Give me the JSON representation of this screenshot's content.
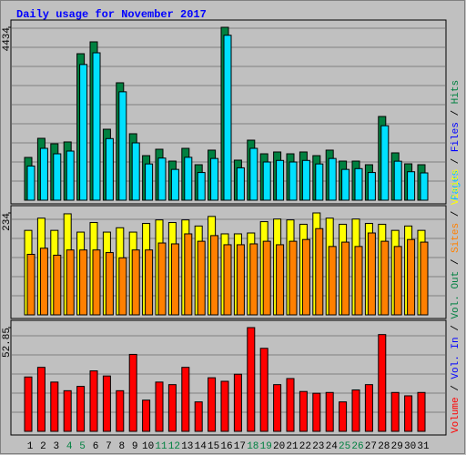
{
  "chart_data": {
    "type": "bar",
    "title": "Daily usage for November 2017",
    "categories": [
      "1",
      "2",
      "3",
      "4",
      "5",
      "6",
      "7",
      "8",
      "9",
      "10",
      "11",
      "12",
      "13",
      "14",
      "15",
      "16",
      "17",
      "18",
      "19",
      "20",
      "21",
      "22",
      "23",
      "24",
      "25",
      "26",
      "27",
      "28",
      "29",
      "30",
      "31"
    ],
    "weekends": [
      "4",
      "5",
      "11",
      "12",
      "18",
      "19",
      "25",
      "26"
    ],
    "weekend_color": "#008040",
    "panels": [
      {
        "ylim": [
          0,
          4434
        ],
        "yticks": [
          4434
        ],
        "series": [
          {
            "name": "Hits",
            "color": "#008040",
            "values": [
              1097,
              1587,
              1447,
              1494,
              3757,
              4061,
              1820,
              3011,
              1704,
              1143,
              1307,
              1003,
              1330,
              910,
              1284,
              4434,
              1027,
              1540,
              1190,
              1237,
              1190,
              1237,
              1143,
              1284,
              1003,
              1003,
              910,
              2147,
              1214,
              933,
              910
            ]
          },
          {
            "name": "Files",
            "color": "#00e0ff",
            "label_color": "#0000ff",
            "values": [
              947,
              1400,
              1260,
              1330,
              3550,
              3850,
              1650,
              2850,
              1540,
              1000,
              1150,
              860,
              1170,
              780,
              1140,
              4300,
              900,
              1400,
              1050,
              1090,
              1050,
              1090,
              1000,
              1140,
              860,
              880,
              780,
              1980,
              1070,
              800,
              770
            ]
          },
          {
            "name": "Pages",
            "color": "#00c0ff",
            "values": [
              0,
              0,
              0,
              0,
              0,
              0,
              0,
              0,
              0,
              0,
              0,
              0,
              0,
              0,
              0,
              0,
              0,
              0,
              0,
              0,
              0,
              0,
              0,
              0,
              0,
              0,
              0,
              0,
              0,
              0,
              0
            ]
          }
        ]
      },
      {
        "ylim": [
          0,
          234
        ],
        "yticks": [
          234
        ],
        "series": [
          {
            "name": "Visits",
            "color": "#ffff00",
            "values": [
              194,
              222,
              194,
              232,
              190,
              212,
              190,
              200,
              190,
              210,
              218,
              212,
              218,
              204,
              226,
              186,
              186,
              188,
              214,
              220,
              218,
              208,
              234,
              222,
              208,
              220,
              210,
              208,
              194,
              204,
              194
            ]
          },
          {
            "name": "Sites",
            "color": "#ff8000",
            "values": [
              139,
              153,
              137,
              149,
              149,
              149,
              143,
              131,
              149,
              149,
              165,
              163,
              186,
              169,
              182,
              161,
              161,
              163,
              169,
              161,
              169,
              173,
              198,
              157,
              167,
              157,
              188,
              169,
              157,
              173,
              167
            ]
          }
        ]
      },
      {
        "ylim": [
          0,
          52.85
        ],
        "yticks": [
          52.85
        ],
        "series": [
          {
            "name": "Volume",
            "color": "#ff0000",
            "values": [
              27.7,
              32.6,
              25.1,
              20.7,
              22.9,
              30.8,
              28.2,
              20.7,
              39.2,
              15.9,
              25.1,
              23.8,
              32.6,
              15.0,
              27.3,
              25.5,
              29.1,
              52.85,
              42.3,
              23.8,
              26.9,
              20.3,
              19.4,
              19.8,
              15.0,
              21.1,
              23.8,
              49.3,
              19.8,
              18.1,
              19.8
            ]
          },
          {
            "name": "Vol. In",
            "color": "#0000ff",
            "values": [
              0,
              0,
              0,
              0,
              0,
              0,
              0,
              0,
              0,
              0,
              0,
              0,
              0,
              0,
              0,
              0,
              0,
              0,
              0,
              0,
              0,
              0,
              0,
              0,
              0,
              0,
              0,
              0,
              0,
              0,
              0
            ]
          },
          {
            "name": "Vol. Out",
            "color": "#008040",
            "values": [
              0,
              0,
              0,
              0,
              0,
              0,
              0,
              0,
              0,
              0,
              0,
              0,
              0,
              0,
              0,
              0,
              0,
              0,
              0,
              0,
              0,
              0,
              0,
              0,
              0,
              0,
              0,
              0,
              0,
              0,
              0
            ]
          }
        ]
      }
    ]
  }
}
